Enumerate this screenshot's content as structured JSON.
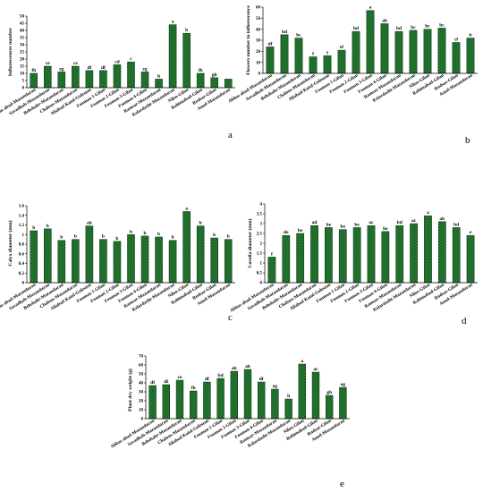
{
  "chart_data": [
    {
      "id": "a",
      "type": "bar",
      "panel_label": "a",
      "ylabel": "Inflorescences number",
      "ylim": [
        0,
        50
      ],
      "yticks": [
        0,
        5,
        10,
        15,
        20,
        25,
        30,
        35,
        40,
        45,
        50
      ],
      "categories": [
        "Abbas abad-Mazandaran",
        "Savadkoh-Mazandaran",
        "Behshahr-Mazandaran",
        "Chalous-Mazandaran",
        "Aliabad Katol-Golestan",
        "Fouman 1-Gilan",
        "Fouman 2-Gilan",
        "Fouman 3-Gilan",
        "Fouman 4-Gilan",
        "Ramsar-Mazandaran",
        "Kelardasht-Mazandaran",
        "Niloo-Gilan",
        "Rahimabad-Gilan",
        "Rudsar-Gilan",
        "Amol-Mazandaran"
      ],
      "values": [
        10,
        15,
        11,
        15,
        12,
        12,
        16,
        18,
        11,
        6,
        44,
        38,
        10,
        7,
        6
      ],
      "labels": [
        "fh",
        "ce",
        "eg",
        "ce",
        "df",
        "df",
        "cd",
        "c",
        "eg",
        "h",
        "a",
        "b",
        "fh",
        "gh",
        ""
      ],
      "grid": false,
      "legend": "none"
    },
    {
      "id": "b",
      "type": "bar",
      "panel_label": "b",
      "ylabel": "Flowers number in  inflorescence",
      "ylim": [
        0,
        60
      ],
      "yticks": [
        0,
        10,
        20,
        30,
        40,
        50,
        60
      ],
      "categories": [
        "Abbas abad-Mazandaran",
        "Savadkoh-Mazandaran",
        "Behshahr-Mazandaran",
        "Chalous-Mazandaran",
        "Aliabad Katol-Golestan",
        "Fouman 1-Gilan",
        "Fouman 2-Gilan",
        "Fouman 3-Gilan",
        "Fouman 4-Gilan",
        "Ramsar-Mazandaran",
        "Kelardasht-Mazandaran",
        "Niloo-Gilan",
        "Rahimabad-Gilan",
        "Rudsar-Gilan",
        "Amol-Mazandaran"
      ],
      "values": [
        24,
        35,
        32,
        15,
        16,
        21,
        38,
        57,
        45,
        38,
        39,
        40,
        41,
        28,
        32
      ],
      "labels": [
        "df",
        "bd",
        "bc",
        "f",
        "f",
        "ef",
        "bd",
        "a",
        "ab",
        "bd",
        "bc",
        "bc",
        "bc",
        "cf",
        "b"
      ],
      "grid": false,
      "legend": "none"
    },
    {
      "id": "c",
      "type": "bar",
      "panel_label": "c",
      "ylabel": "Calyx diameter (mm)",
      "ylim": [
        0,
        1.6
      ],
      "yticks": [
        0,
        0.2,
        0.4,
        0.6,
        0.8,
        1,
        1.2,
        1.4,
        1.6
      ],
      "categories": [
        "Abbas abad-Mazandaran",
        "Savadkoh-Mazandaran",
        "Behshahr-Mazandaran",
        "Chalous-Mazandaran",
        "Aliabad Katol-Golestan",
        "Fouman 1-Gilan",
        "Fouman 2-Gilan",
        "Fouman 3-Gilan",
        "Fouman 4-Gilan",
        "Ramsar-Mazandaran",
        "Kelardasht-Mazandaran",
        "Niloo-Gilan",
        "Rahimabad-Gilan",
        "Rudsar-Gilan",
        "Amol-Mazandaran"
      ],
      "values": [
        1.08,
        1.12,
        0.88,
        0.9,
        1.18,
        0.9,
        0.86,
        1.0,
        0.97,
        0.95,
        0.88,
        1.48,
        1.18,
        0.93,
        0.9
      ],
      "labels": [
        "b",
        "b",
        "b",
        "b",
        "ab",
        "b",
        "b",
        "b",
        "b",
        "b",
        "b",
        "a",
        "b",
        "b",
        "b"
      ],
      "grid": false,
      "legend": "none"
    },
    {
      "id": "d",
      "type": "bar",
      "panel_label": "d",
      "ylabel": "Corolla diameter (mm)",
      "ylim": [
        0,
        4
      ],
      "yticks": [
        0,
        0.5,
        1,
        1.5,
        2,
        2.5,
        3,
        3.5,
        4
      ],
      "categories": [
        "Abbas abad-Mazandaran",
        "Savadkoh-Mazandaran",
        "Behshahr-Mazandaran",
        "Chalous-Mazandaran",
        "Aliabad Katol-Golestan",
        "Fouman 1-Gilan",
        "Fouman 2-Gilan",
        "Fouman 3-Gilan",
        "Fouman 4-Gilan",
        "Ramsar-Mazandaran",
        "Kelardasht-Mazandaran",
        "Niloo-Gilan",
        "Rahimabad-Gilan",
        "Rudsar-Gilan",
        "Amol-Mazandaran"
      ],
      "values": [
        1.3,
        2.4,
        2.5,
        2.9,
        2.8,
        2.7,
        2.8,
        2.9,
        2.6,
        2.9,
        3.0,
        3.4,
        3.1,
        2.8,
        2.4
      ],
      "labels": [
        "f",
        "de",
        "be",
        "ad",
        "be",
        "be",
        "be",
        "ac",
        "be",
        "bd",
        "ac",
        "a",
        "ab",
        "bd",
        "e"
      ],
      "grid": false,
      "legend": "none"
    },
    {
      "id": "e",
      "type": "bar",
      "panel_label": "e",
      "ylabel": "Plant dry weight (g)",
      "ylim": [
        0,
        70
      ],
      "yticks": [
        0,
        10,
        20,
        30,
        40,
        50,
        60,
        70
      ],
      "categories": [
        "Abbas abad-Mazandaran",
        "Savadkoh-Mazandaran",
        "Behshahr-Mazandaran",
        "Chalous-Mazandaran",
        "Aliabad Katol-Golestan",
        "Fouman 1-Gilan",
        "Fouman 2-Gilan",
        "Fouman 3-Gilan",
        "Fouman 4-Gilan",
        "Ramsar-Mazandaran",
        "Kelardasht-Mazandaran",
        "Niloo-Gilan",
        "Rahimabad-Gilan",
        "Rudsar-Gilan",
        "Amol-Mazandaran"
      ],
      "values": [
        37,
        38,
        43,
        31,
        41,
        45,
        53,
        55,
        41,
        33,
        22,
        61,
        52,
        26,
        35
      ],
      "labels": [
        "df",
        "df",
        "ce",
        "fh",
        "df",
        "bd",
        "ab",
        "ab",
        "df",
        "eg",
        "h",
        "a",
        "ac",
        "gh",
        "eg"
      ],
      "grid": false,
      "legend": "none"
    }
  ],
  "colors": {
    "bar_fill": "#2e9a3e",
    "bar_hatch": "#0b2e12",
    "bar_edge": "#0d3515",
    "axis": "#000000",
    "text": "#000000",
    "background": "#ffffff"
  }
}
